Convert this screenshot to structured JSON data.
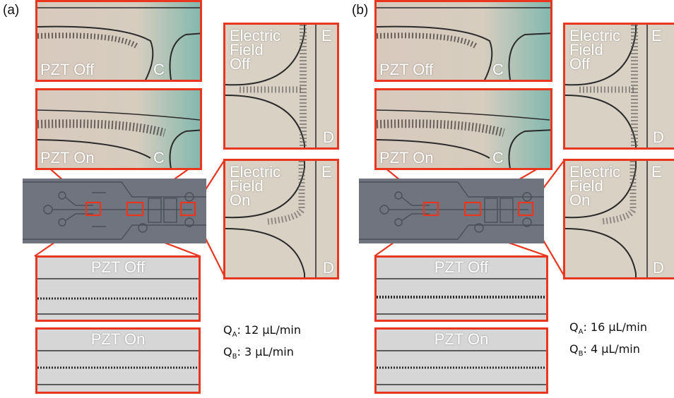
{
  "panels": [
    {
      "label": "(a)",
      "nozzle_off": "PZT Off",
      "nozzle_on": "PZT On",
      "nozzle_mark": "C",
      "field_off": "Electric\nField\nOff",
      "field_on": "Electric\nField\nOn",
      "field_mark_top": "E",
      "field_mark_bottom": "D",
      "channel_off": "PZT Off",
      "channel_on": "PZT On",
      "qa_label": "Q",
      "qa_sub": "A",
      "qa_value": ": 12 µL/min",
      "qb_label": "Q",
      "qb_sub": "B",
      "qb_value": ":   3 µL/min"
    },
    {
      "label": "(b)",
      "nozzle_off": "PZT Off",
      "nozzle_on": "PZT On",
      "nozzle_mark": "C",
      "field_off": "Electric\nField\nOff",
      "field_on": "Electric\nField\nOn",
      "field_mark_top": "E",
      "field_mark_bottom": "D",
      "channel_off": "PZT Off",
      "channel_on": "PZT On",
      "qa_label": "Q",
      "qa_sub": "A",
      "qa_value": ": 16 µL/min",
      "qb_label": "Q",
      "qb_sub": "B",
      "qb_value": ":   4 µL/min"
    }
  ],
  "colors": {
    "frame": "#e8361f",
    "chip": "#6f737e",
    "micro_bg": "#d9d3c8"
  }
}
